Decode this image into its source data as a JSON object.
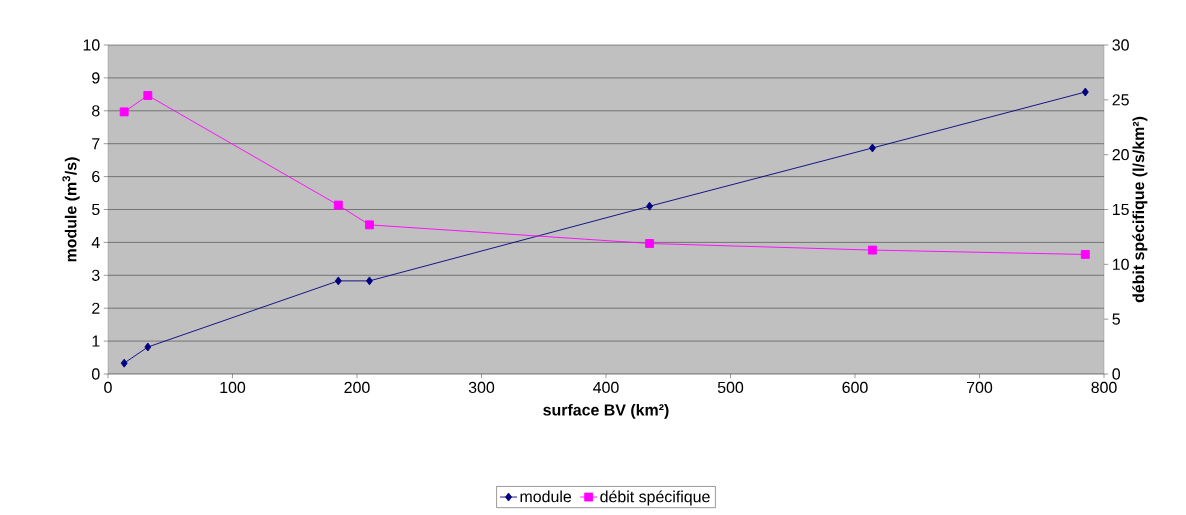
{
  "chart_data": {
    "type": "line",
    "xlabel": "surface BV (km²)",
    "ylabel": "module (m$^{3}$/s)",
    "y2label": "débit spécifique (l/s/km²)",
    "x": [
      13,
      32,
      185,
      210,
      435,
      614,
      785
    ],
    "series": [
      {
        "name": "module",
        "color": "#000080",
        "marker": "diamond",
        "values": [
          0.33,
          0.82,
          2.83,
          2.83,
          5.1,
          6.87,
          8.57
        ]
      },
      {
        "name": "débit spécifique",
        "color": "#ff00ff",
        "marker": "square",
        "axis": "y2",
        "values": [
          23.9,
          25.4,
          15.4,
          13.6,
          11.9,
          11.3,
          10.9
        ]
      }
    ],
    "xlim": [
      0,
      800
    ],
    "xticks": [
      0,
      100,
      200,
      300,
      400,
      500,
      600,
      700,
      800
    ],
    "ylim": [
      0,
      10
    ],
    "yticks": [
      0,
      1,
      2,
      3,
      4,
      5,
      6,
      7,
      8,
      9,
      10
    ],
    "y2lim": [
      0,
      30
    ],
    "y2ticks": [
      0,
      5,
      10,
      15,
      20,
      25,
      30
    ],
    "grid": "y",
    "legend": "bottom"
  }
}
